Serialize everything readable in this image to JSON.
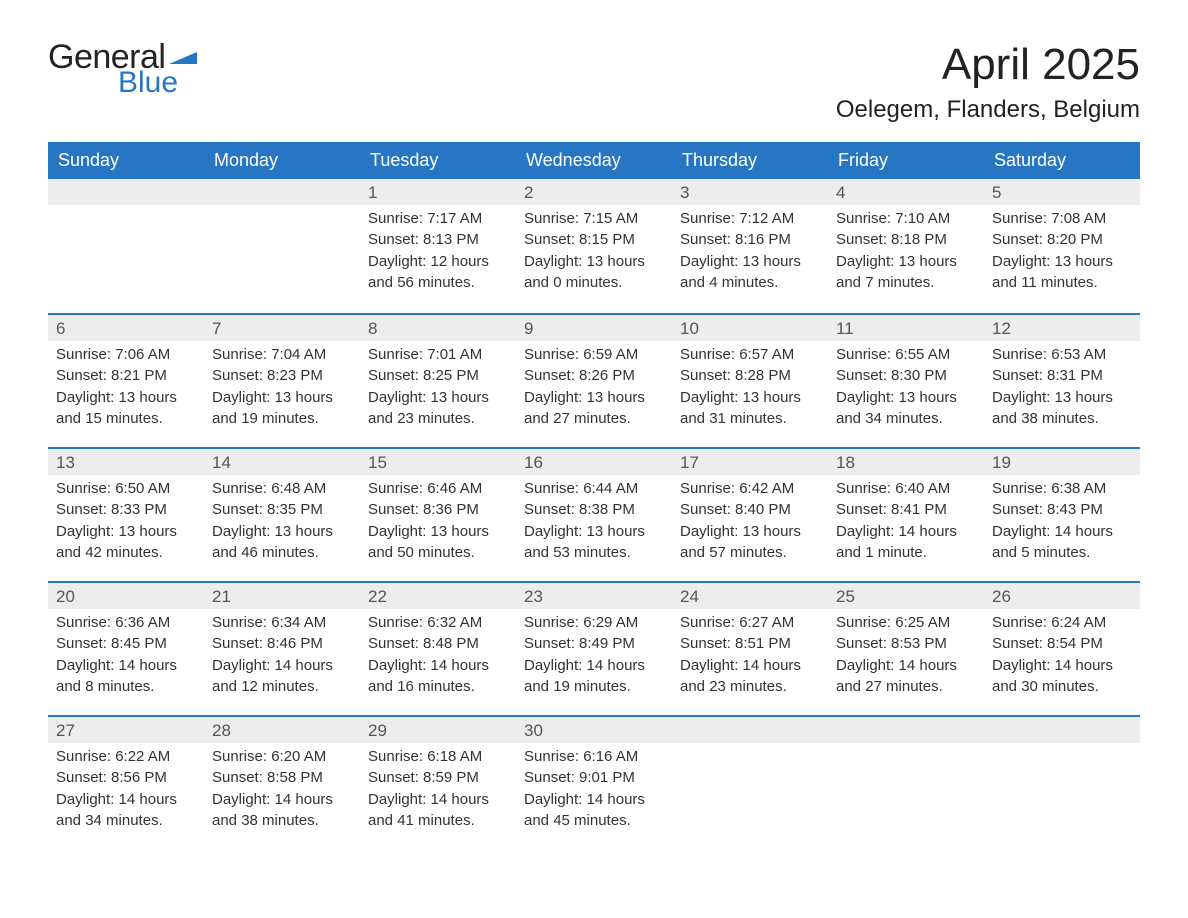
{
  "logo": {
    "general": "General",
    "blue": "Blue",
    "flag_color": "#2776c4"
  },
  "title": "April 2025",
  "location": "Oelegem, Flanders, Belgium",
  "colors": {
    "header_bg": "#2776c4",
    "header_text": "#ffffff",
    "daynum_bg": "#ededed",
    "body_text": "#333333",
    "rule": "#2776c4"
  },
  "fonts": {
    "title_pt": 44,
    "location_pt": 24,
    "dayheader_pt": 18,
    "body_pt": 15
  },
  "day_names": [
    "Sunday",
    "Monday",
    "Tuesday",
    "Wednesday",
    "Thursday",
    "Friday",
    "Saturday"
  ],
  "weeks": [
    [
      null,
      null,
      {
        "n": "1",
        "sr": "Sunrise: 7:17 AM",
        "ss": "Sunset: 8:13 PM",
        "d1": "Daylight: 12 hours",
        "d2": "and 56 minutes."
      },
      {
        "n": "2",
        "sr": "Sunrise: 7:15 AM",
        "ss": "Sunset: 8:15 PM",
        "d1": "Daylight: 13 hours",
        "d2": "and 0 minutes."
      },
      {
        "n": "3",
        "sr": "Sunrise: 7:12 AM",
        "ss": "Sunset: 8:16 PM",
        "d1": "Daylight: 13 hours",
        "d2": "and 4 minutes."
      },
      {
        "n": "4",
        "sr": "Sunrise: 7:10 AM",
        "ss": "Sunset: 8:18 PM",
        "d1": "Daylight: 13 hours",
        "d2": "and 7 minutes."
      },
      {
        "n": "5",
        "sr": "Sunrise: 7:08 AM",
        "ss": "Sunset: 8:20 PM",
        "d1": "Daylight: 13 hours",
        "d2": "and 11 minutes."
      }
    ],
    [
      {
        "n": "6",
        "sr": "Sunrise: 7:06 AM",
        "ss": "Sunset: 8:21 PM",
        "d1": "Daylight: 13 hours",
        "d2": "and 15 minutes."
      },
      {
        "n": "7",
        "sr": "Sunrise: 7:04 AM",
        "ss": "Sunset: 8:23 PM",
        "d1": "Daylight: 13 hours",
        "d2": "and 19 minutes."
      },
      {
        "n": "8",
        "sr": "Sunrise: 7:01 AM",
        "ss": "Sunset: 8:25 PM",
        "d1": "Daylight: 13 hours",
        "d2": "and 23 minutes."
      },
      {
        "n": "9",
        "sr": "Sunrise: 6:59 AM",
        "ss": "Sunset: 8:26 PM",
        "d1": "Daylight: 13 hours",
        "d2": "and 27 minutes."
      },
      {
        "n": "10",
        "sr": "Sunrise: 6:57 AM",
        "ss": "Sunset: 8:28 PM",
        "d1": "Daylight: 13 hours",
        "d2": "and 31 minutes."
      },
      {
        "n": "11",
        "sr": "Sunrise: 6:55 AM",
        "ss": "Sunset: 8:30 PM",
        "d1": "Daylight: 13 hours",
        "d2": "and 34 minutes."
      },
      {
        "n": "12",
        "sr": "Sunrise: 6:53 AM",
        "ss": "Sunset: 8:31 PM",
        "d1": "Daylight: 13 hours",
        "d2": "and 38 minutes."
      }
    ],
    [
      {
        "n": "13",
        "sr": "Sunrise: 6:50 AM",
        "ss": "Sunset: 8:33 PM",
        "d1": "Daylight: 13 hours",
        "d2": "and 42 minutes."
      },
      {
        "n": "14",
        "sr": "Sunrise: 6:48 AM",
        "ss": "Sunset: 8:35 PM",
        "d1": "Daylight: 13 hours",
        "d2": "and 46 minutes."
      },
      {
        "n": "15",
        "sr": "Sunrise: 6:46 AM",
        "ss": "Sunset: 8:36 PM",
        "d1": "Daylight: 13 hours",
        "d2": "and 50 minutes."
      },
      {
        "n": "16",
        "sr": "Sunrise: 6:44 AM",
        "ss": "Sunset: 8:38 PM",
        "d1": "Daylight: 13 hours",
        "d2": "and 53 minutes."
      },
      {
        "n": "17",
        "sr": "Sunrise: 6:42 AM",
        "ss": "Sunset: 8:40 PM",
        "d1": "Daylight: 13 hours",
        "d2": "and 57 minutes."
      },
      {
        "n": "18",
        "sr": "Sunrise: 6:40 AM",
        "ss": "Sunset: 8:41 PM",
        "d1": "Daylight: 14 hours",
        "d2": "and 1 minute."
      },
      {
        "n": "19",
        "sr": "Sunrise: 6:38 AM",
        "ss": "Sunset: 8:43 PM",
        "d1": "Daylight: 14 hours",
        "d2": "and 5 minutes."
      }
    ],
    [
      {
        "n": "20",
        "sr": "Sunrise: 6:36 AM",
        "ss": "Sunset: 8:45 PM",
        "d1": "Daylight: 14 hours",
        "d2": "and 8 minutes."
      },
      {
        "n": "21",
        "sr": "Sunrise: 6:34 AM",
        "ss": "Sunset: 8:46 PM",
        "d1": "Daylight: 14 hours",
        "d2": "and 12 minutes."
      },
      {
        "n": "22",
        "sr": "Sunrise: 6:32 AM",
        "ss": "Sunset: 8:48 PM",
        "d1": "Daylight: 14 hours",
        "d2": "and 16 minutes."
      },
      {
        "n": "23",
        "sr": "Sunrise: 6:29 AM",
        "ss": "Sunset: 8:49 PM",
        "d1": "Daylight: 14 hours",
        "d2": "and 19 minutes."
      },
      {
        "n": "24",
        "sr": "Sunrise: 6:27 AM",
        "ss": "Sunset: 8:51 PM",
        "d1": "Daylight: 14 hours",
        "d2": "and 23 minutes."
      },
      {
        "n": "25",
        "sr": "Sunrise: 6:25 AM",
        "ss": "Sunset: 8:53 PM",
        "d1": "Daylight: 14 hours",
        "d2": "and 27 minutes."
      },
      {
        "n": "26",
        "sr": "Sunrise: 6:24 AM",
        "ss": "Sunset: 8:54 PM",
        "d1": "Daylight: 14 hours",
        "d2": "and 30 minutes."
      }
    ],
    [
      {
        "n": "27",
        "sr": "Sunrise: 6:22 AM",
        "ss": "Sunset: 8:56 PM",
        "d1": "Daylight: 14 hours",
        "d2": "and 34 minutes."
      },
      {
        "n": "28",
        "sr": "Sunrise: 6:20 AM",
        "ss": "Sunset: 8:58 PM",
        "d1": "Daylight: 14 hours",
        "d2": "and 38 minutes."
      },
      {
        "n": "29",
        "sr": "Sunrise: 6:18 AM",
        "ss": "Sunset: 8:59 PM",
        "d1": "Daylight: 14 hours",
        "d2": "and 41 minutes."
      },
      {
        "n": "30",
        "sr": "Sunrise: 6:16 AM",
        "ss": "Sunset: 9:01 PM",
        "d1": "Daylight: 14 hours",
        "d2": "and 45 minutes."
      },
      null,
      null,
      null
    ]
  ]
}
